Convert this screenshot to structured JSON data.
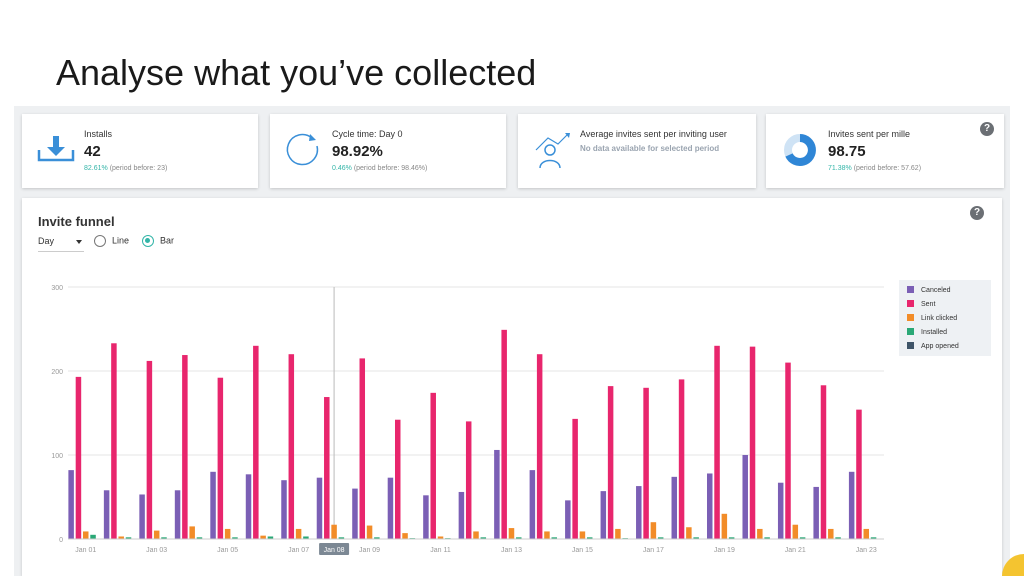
{
  "slide": {
    "title": "Analyse what you’ve collected"
  },
  "cards": [
    {
      "icon": "download-icon",
      "label": "Installs",
      "value": "42",
      "pct": "82.61%",
      "before": "(period before: 23)"
    },
    {
      "icon": "cycle-icon",
      "label": "Cycle time: Day 0",
      "value": "98.92%",
      "pct": "0.46%",
      "before": "(period before: 98.46%)"
    },
    {
      "icon": "inviter-icon",
      "label": "Average invites sent per inviting user",
      "value": "",
      "nodata": "No data available for selected period"
    },
    {
      "icon": "donut-icon",
      "label": "Invites sent per mille",
      "value": "98.75",
      "pct": "71.38%",
      "before": "(period before: 57.62)"
    }
  ],
  "help_label": "?",
  "funnel": {
    "title": "Invite funnel",
    "period_select": "Day",
    "radio_line": "Line",
    "radio_bar": "Bar",
    "selected_mode": "Bar",
    "hover_label": "Jan 08"
  },
  "chart_data": {
    "type": "bar",
    "title": "Invite funnel",
    "xlabel": "",
    "ylabel": "",
    "ylim": [
      0,
      300
    ],
    "yticks": [
      0,
      100,
      200,
      300
    ],
    "grid": true,
    "legend_position": "right",
    "categories": [
      "Jan 01",
      "Jan 02",
      "Jan 03",
      "Jan 04",
      "Jan 05",
      "Jan 06",
      "Jan 07",
      "Jan 08",
      "Jan 09",
      "Jan 10",
      "Jan 11",
      "Jan 12",
      "Jan 13",
      "Jan 14",
      "Jan 15",
      "Jan 16",
      "Jan 17",
      "Jan 18",
      "Jan 19",
      "Jan 20",
      "Jan 21",
      "Jan 22",
      "Jan 23"
    ],
    "tick_labels": [
      "Jan 01",
      "Jan 03",
      "Jan 05",
      "Jan 07",
      "Jan 08",
      "Jan 09",
      "Jan 11",
      "Jan 13",
      "Jan 15",
      "Jan 17",
      "Jan 19",
      "Jan 21",
      "Jan 23"
    ],
    "series": [
      {
        "name": "Canceled",
        "color": "#7b5fb5",
        "values": [
          82,
          58,
          53,
          58,
          80,
          77,
          70,
          73,
          60,
          73,
          52,
          56,
          106,
          82,
          46,
          57,
          63,
          74,
          78,
          100,
          67,
          62,
          80
        ]
      },
      {
        "name": "Sent",
        "color": "#e8266d",
        "values": [
          193,
          233,
          212,
          219,
          192,
          230,
          220,
          169,
          215,
          142,
          174,
          140,
          249,
          220,
          143,
          182,
          180,
          190,
          230,
          229,
          210,
          183,
          154
        ]
      },
      {
        "name": "Link clicked",
        "color": "#f28c28",
        "values": [
          9,
          3,
          10,
          15,
          12,
          4,
          12,
          17,
          16,
          7,
          3,
          9,
          13,
          9,
          9,
          12,
          20,
          14,
          30,
          12,
          17,
          12,
          12
        ]
      },
      {
        "name": "Installed",
        "color": "#2aa876",
        "values": [
          5,
          2,
          2,
          2,
          2,
          3,
          3,
          2,
          2,
          1,
          1,
          2,
          2,
          2,
          2,
          1,
          2,
          2,
          2,
          2,
          2,
          2,
          2
        ]
      },
      {
        "name": "App opened",
        "color": "#3f5468",
        "values": [
          0,
          0,
          0,
          0,
          0,
          0,
          0,
          0,
          0,
          0,
          0,
          0,
          0,
          0,
          0,
          0,
          0,
          0,
          0,
          0,
          0,
          0,
          0
        ]
      }
    ]
  }
}
